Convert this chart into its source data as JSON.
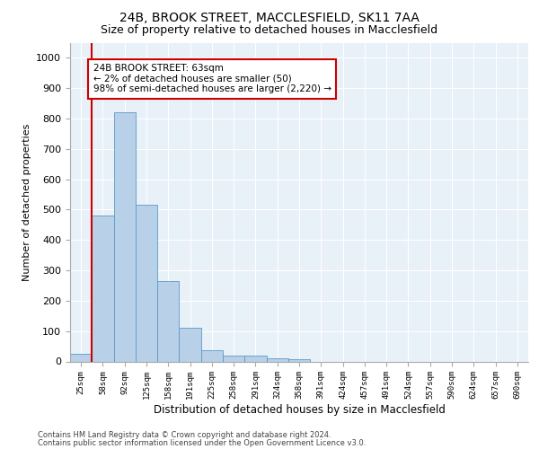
{
  "title": "24B, BROOK STREET, MACCLESFIELD, SK11 7AA",
  "subtitle": "Size of property relative to detached houses in Macclesfield",
  "xlabel": "Distribution of detached houses by size in Macclesfield",
  "ylabel": "Number of detached properties",
  "categories": [
    "25sqm",
    "58sqm",
    "92sqm",
    "125sqm",
    "158sqm",
    "191sqm",
    "225sqm",
    "258sqm",
    "291sqm",
    "324sqm",
    "358sqm",
    "391sqm",
    "424sqm",
    "457sqm",
    "491sqm",
    "524sqm",
    "557sqm",
    "590sqm",
    "624sqm",
    "657sqm",
    "690sqm"
  ],
  "values": [
    25,
    480,
    820,
    515,
    265,
    110,
    38,
    20,
    20,
    10,
    8,
    0,
    0,
    0,
    0,
    0,
    0,
    0,
    0,
    0,
    0
  ],
  "bar_color": "#b8d0e8",
  "bar_edge_color": "#5a9ac8",
  "background_color": "#e8f0f8",
  "marker_color": "#cc0000",
  "annotation_text": "24B BROOK STREET: 63sqm\n← 2% of detached houses are smaller (50)\n98% of semi-detached houses are larger (2,220) →",
  "annotation_box_color": "#cc0000",
  "ylim": [
    0,
    1050
  ],
  "yticks": [
    0,
    100,
    200,
    300,
    400,
    500,
    600,
    700,
    800,
    900,
    1000
  ],
  "footer1": "Contains HM Land Registry data © Crown copyright and database right 2024.",
  "footer2": "Contains public sector information licensed under the Open Government Licence v3.0.",
  "title_fontsize": 10,
  "subtitle_fontsize": 9
}
